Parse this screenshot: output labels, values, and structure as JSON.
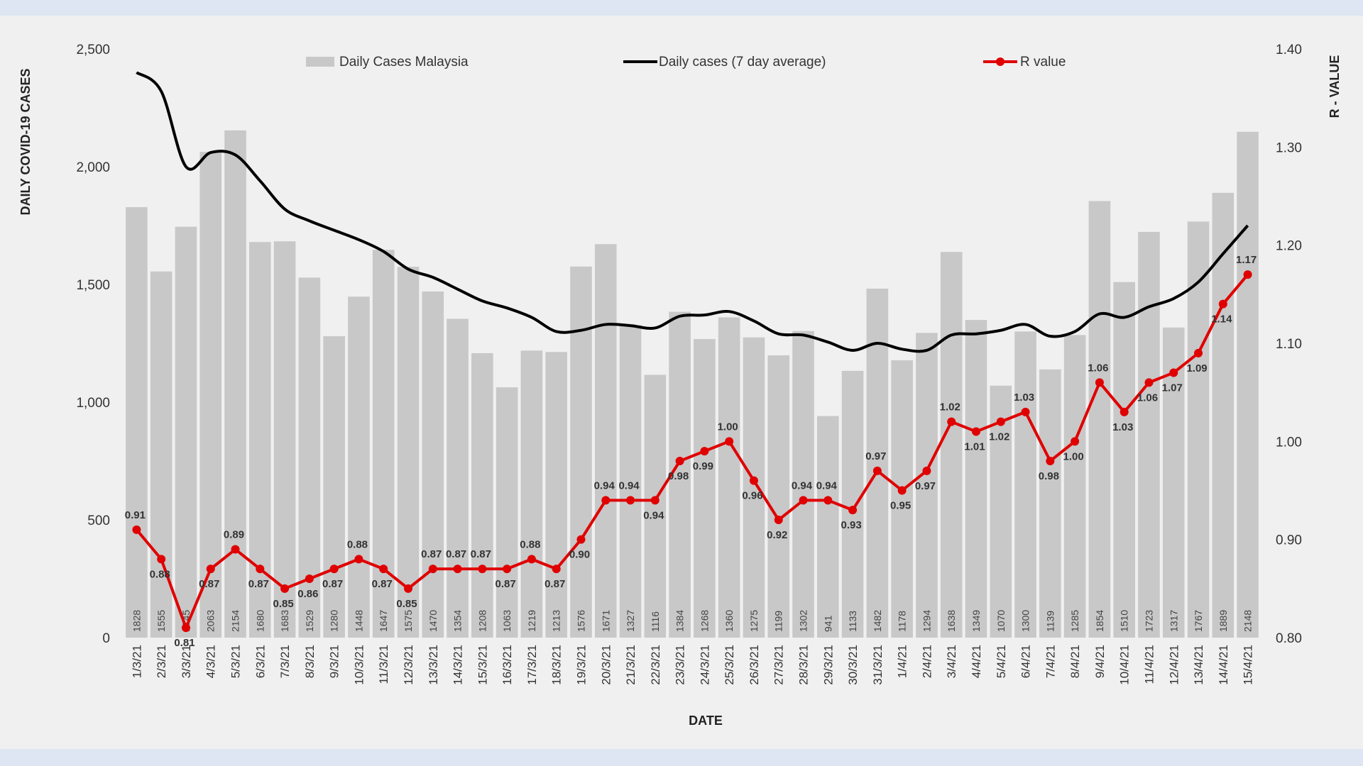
{
  "colors": {
    "background": "#f0f0f0",
    "bars": "#c8c8c8",
    "average_line": "#000000",
    "r_line": "#e00000"
  },
  "chart_data": {
    "type": "bar",
    "xlabel": "DATE",
    "ylabel": "DAILY COVID-19 CASES",
    "y2label": "R - VALUE",
    "ylim": [
      0,
      2500
    ],
    "y2lim": [
      0.8,
      1.4
    ],
    "yticks": [
      "0",
      "500",
      "1,000",
      "1,500",
      "2,000",
      "2,500"
    ],
    "y2ticks": [
      "0.80",
      "0.90",
      "1.00",
      "1.10",
      "1.20",
      "1.30",
      "1.40"
    ],
    "grid": false,
    "legend_position": "top",
    "categories": [
      "1/3/21",
      "2/3/21",
      "3/3/21",
      "4/3/21",
      "5/3/21",
      "6/3/21",
      "7/3/21",
      "8/3/21",
      "9/3/21",
      "10/3/21",
      "11/3/21",
      "12/3/21",
      "13/3/21",
      "14/3/21",
      "15/3/21",
      "16/3/21",
      "17/3/21",
      "18/3/21",
      "19/3/21",
      "20/3/21",
      "21/3/21",
      "22/3/21",
      "23/3/21",
      "24/3/21",
      "25/3/21",
      "26/3/21",
      "27/3/21",
      "28/3/21",
      "29/3/21",
      "30/3/21",
      "31/3/21",
      "1/4/21",
      "2/4/21",
      "3/4/21",
      "4/4/21",
      "5/4/21",
      "6/4/21",
      "7/4/21",
      "8/4/21",
      "9/4/21",
      "10/4/21",
      "11/4/21",
      "12/4/21",
      "13/4/21",
      "14/4/21",
      "15/4/21"
    ],
    "series": [
      {
        "name": "Daily Cases Malaysia",
        "type": "bar",
        "axis": "left",
        "values": [
          1828,
          1555,
          1745,
          2063,
          2154,
          1680,
          1683,
          1529,
          1280,
          1448,
          1647,
          1575,
          1470,
          1354,
          1208,
          1063,
          1219,
          1213,
          1576,
          1671,
          1327,
          1116,
          1384,
          1268,
          1360,
          1275,
          1199,
          1302,
          941,
          1133,
          1482,
          1178,
          1294,
          1638,
          1349,
          1070,
          1300,
          1139,
          1285,
          1854,
          1510,
          1723,
          1317,
          1767,
          1889,
          2148
        ],
        "labels": [
          "1828",
          "1555",
          "1745",
          "2063",
          "2154",
          "1680",
          "1683",
          "1529",
          "1280",
          "1448",
          "1647",
          "1575",
          "1470",
          "1354",
          "1208",
          "1063",
          "1219",
          "1213",
          "1576",
          "1671",
          "1327",
          "1116",
          "1384",
          "1268",
          "1360",
          "1275",
          "1199",
          "1302",
          "941",
          "1133",
          "1482",
          "1178",
          "1294",
          "1638",
          "1349",
          "1070",
          "1300",
          "1139",
          "1285",
          "1854",
          "1510",
          "1723",
          "1317",
          "1767",
          "1889",
          "2148"
        ]
      },
      {
        "name": "Daily cases (7 day average)",
        "type": "line",
        "axis": "left",
        "values": [
          2400,
          2320,
          2000,
          2060,
          2050,
          1940,
          1820,
          1770,
          1730,
          1690,
          1640,
          1565,
          1530,
          1480,
          1430,
          1400,
          1360,
          1300,
          1305,
          1330,
          1325,
          1315,
          1365,
          1370,
          1385,
          1345,
          1290,
          1285,
          1255,
          1220,
          1250,
          1225,
          1220,
          1285,
          1290,
          1305,
          1330,
          1280,
          1300,
          1375,
          1360,
          1405,
          1440,
          1510,
          1630,
          1750
        ]
      },
      {
        "name": "R value",
        "type": "line",
        "axis": "right",
        "values": [
          0.91,
          0.88,
          0.81,
          0.87,
          0.89,
          0.87,
          0.85,
          0.86,
          0.87,
          0.88,
          0.87,
          0.85,
          0.87,
          0.87,
          0.87,
          0.87,
          0.88,
          0.87,
          0.9,
          0.94,
          0.94,
          0.94,
          0.98,
          0.99,
          1.0,
          0.96,
          0.92,
          0.94,
          0.94,
          0.93,
          0.97,
          0.95,
          0.97,
          1.02,
          1.01,
          1.02,
          1.03,
          0.98,
          1.0,
          1.06,
          1.03,
          1.06,
          1.07,
          1.09,
          1.14,
          1.17
        ],
        "labels": [
          "0.91",
          "0.88",
          "0.81",
          "0.87",
          "0.89",
          "0.87",
          "0.85",
          "0.86",
          "0.87",
          "0.88",
          "0.87",
          "0.85",
          "0.87",
          "0.87",
          "0.87",
          "0.87",
          "0.88",
          "0.87",
          "0.90",
          "0.94",
          "0.94",
          "0.94",
          "0.98",
          "0.99",
          "1.00",
          "0.96",
          "0.92",
          "0.94",
          "0.94",
          "0.93",
          "0.97",
          "0.95",
          "0.97",
          "1.02",
          "1.01",
          "1.02",
          "1.03",
          "0.98",
          "1.00",
          "1.06",
          "1.03",
          "1.06",
          "1.07",
          "1.09",
          "1.14",
          "1.17"
        ]
      }
    ]
  }
}
